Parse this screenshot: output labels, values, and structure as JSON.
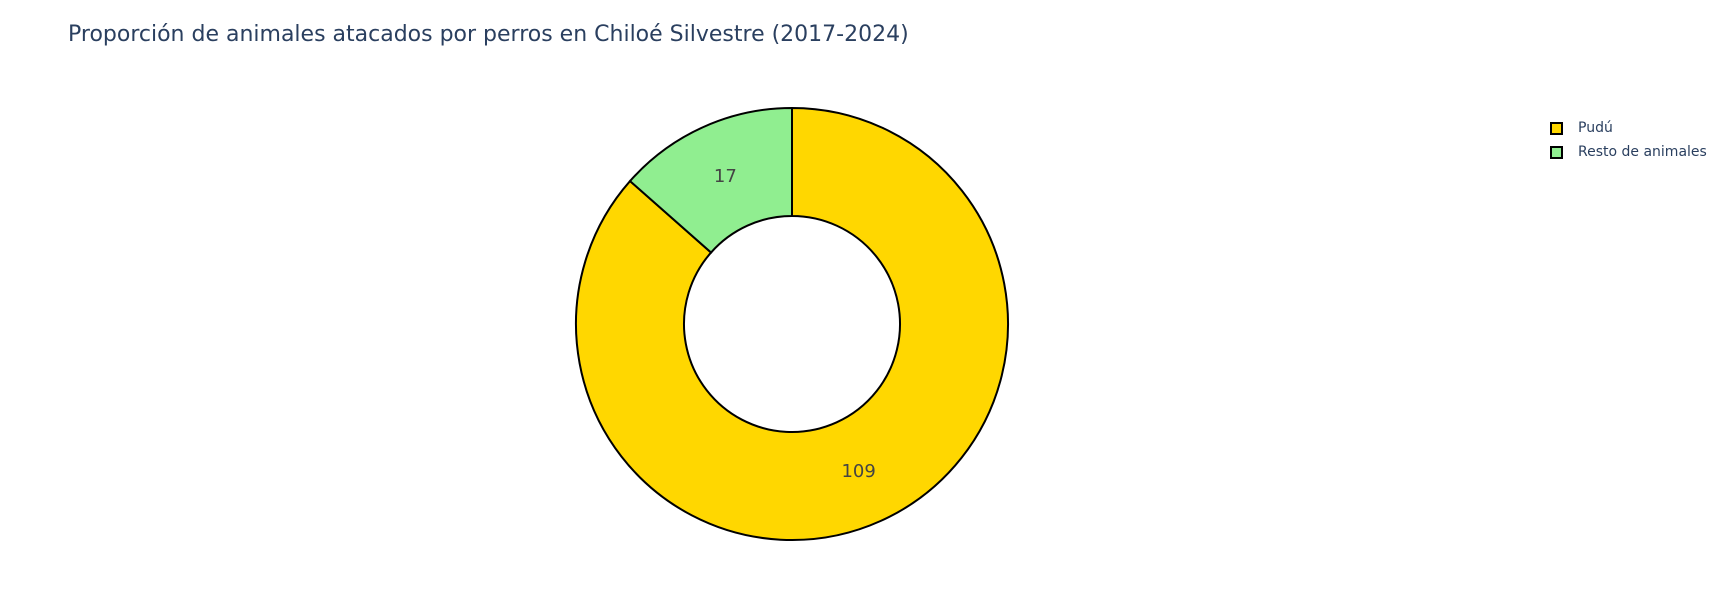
{
  "chart_data": {
    "type": "pie",
    "title": "Proporción de animales atacados por perros en Chiloé Silvestre (2017-2024)",
    "hole": 0.5,
    "slices": [
      {
        "label": "Pudú",
        "value": 109,
        "color": "#FFD700"
      },
      {
        "label": "Resto de animales",
        "value": 17,
        "color": "#90EE90"
      }
    ],
    "direction": "clockwise",
    "start_angle": "top",
    "text_info": "value",
    "legend_position": "top-right"
  }
}
